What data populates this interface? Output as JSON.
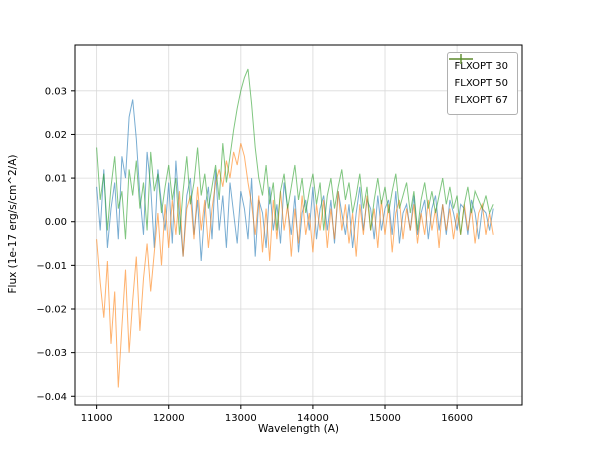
{
  "chart_data": {
    "type": "line",
    "title": "",
    "xlabel": "Wavelength (A)",
    "ylabel": "Flux (1e-17 erg/s/cm^2/A)",
    "x_start": 11000,
    "x_step": 50,
    "xlim": [
      10700,
      16900
    ],
    "ylim": [
      -0.042,
      0.0405
    ],
    "x_ticks": [
      11000,
      12000,
      13000,
      14000,
      15000,
      16000
    ],
    "y_ticks": [
      -0.04,
      -0.03,
      -0.02,
      -0.01,
      0.0,
      0.01,
      0.02,
      0.03
    ],
    "grid": true,
    "grid_color": "#d9d9d9",
    "axes_color": "#000000",
    "legend_position": "upper right",
    "value_scale": 0.001,
    "series": [
      {
        "name": "FLXOPT 30",
        "color": "#1f77b4",
        "values_milli": [
          8,
          -2,
          12,
          -6,
          3,
          9,
          -4,
          15,
          10,
          24,
          28,
          19,
          6,
          -3,
          16,
          8,
          -6,
          12,
          4,
          -2,
          9,
          -5,
          14,
          2,
          -8,
          6,
          10,
          -3,
          5,
          -9,
          3,
          8,
          -4,
          12,
          -2,
          6,
          -6,
          9,
          2,
          -5,
          7,
          3,
          -4,
          10,
          -8,
          5,
          2,
          -6,
          8,
          -2,
          4,
          -5,
          9,
          3,
          -3,
          6,
          -7,
          2,
          5,
          -2,
          8,
          -4,
          3,
          6,
          -2,
          5,
          -5,
          7,
          2,
          -3,
          4,
          -6,
          2,
          8,
          -2,
          5,
          3,
          -4,
          6,
          -2,
          3,
          5,
          -3,
          7,
          -5,
          2,
          4,
          -2,
          6,
          -3,
          2,
          5,
          -4,
          3,
          6,
          -2,
          4,
          -3,
          5,
          2,
          -2,
          4,
          3,
          -3,
          5,
          2,
          -4,
          3,
          2,
          -2,
          3
        ]
      },
      {
        "name": "FLXOPT 50",
        "color": "#ff7f0e",
        "values_milli": [
          -4,
          -14,
          -22,
          -9,
          -28,
          -16,
          -38,
          -24,
          -11,
          -30,
          -18,
          -8,
          -25,
          -13,
          -5,
          -16,
          -7,
          2,
          -10,
          4,
          -6,
          5,
          -3,
          7,
          -8,
          3,
          6,
          -4,
          8,
          -2,
          5,
          -6,
          3,
          9,
          12,
          8,
          14,
          10,
          16,
          13,
          18,
          15,
          9,
          4,
          -3,
          6,
          -7,
          3,
          -9,
          5,
          -4,
          7,
          -2,
          4,
          -8,
          3,
          -5,
          6,
          -3,
          2,
          -7,
          4,
          -2,
          5,
          -6,
          3,
          -4,
          7,
          -2,
          4,
          -5,
          2,
          -8,
          4,
          -3,
          6,
          -2,
          3,
          -6,
          5,
          -3,
          4,
          -7,
          2,
          5,
          -4,
          3,
          -2,
          4,
          -5,
          2,
          -3,
          5,
          -2,
          3,
          -6,
          4,
          -2,
          3,
          -4,
          2,
          -3,
          4,
          -2,
          3,
          -5,
          2,
          4,
          -3,
          2,
          -3
        ]
      },
      {
        "name": "FLXOPT 67",
        "color": "#2ca02c",
        "values_milli": [
          17,
          5,
          11,
          -2,
          8,
          15,
          3,
          7,
          -4,
          12,
          6,
          14,
          3,
          9,
          -2,
          16,
          7,
          11,
          2,
          8,
          13,
          5,
          10,
          -3,
          7,
          15,
          4,
          9,
          17,
          6,
          11,
          3,
          8,
          13,
          5,
          18,
          9,
          15,
          21,
          26,
          30,
          33,
          35,
          27,
          17,
          10,
          6,
          13,
          4,
          9,
          -2,
          7,
          11,
          3,
          8,
          13,
          5,
          10,
          2,
          7,
          11,
          4,
          9,
          -2,
          6,
          10,
          3,
          8,
          12,
          5,
          9,
          2,
          6,
          11,
          3,
          8,
          -2,
          5,
          10,
          4,
          8,
          2,
          7,
          11,
          3,
          6,
          9,
          2,
          7,
          -2,
          5,
          9,
          3,
          7,
          2,
          6,
          10,
          4,
          8,
          3,
          6,
          -3,
          4,
          8,
          2,
          7,
          5,
          3,
          6,
          2,
          4
        ]
      }
    ]
  }
}
